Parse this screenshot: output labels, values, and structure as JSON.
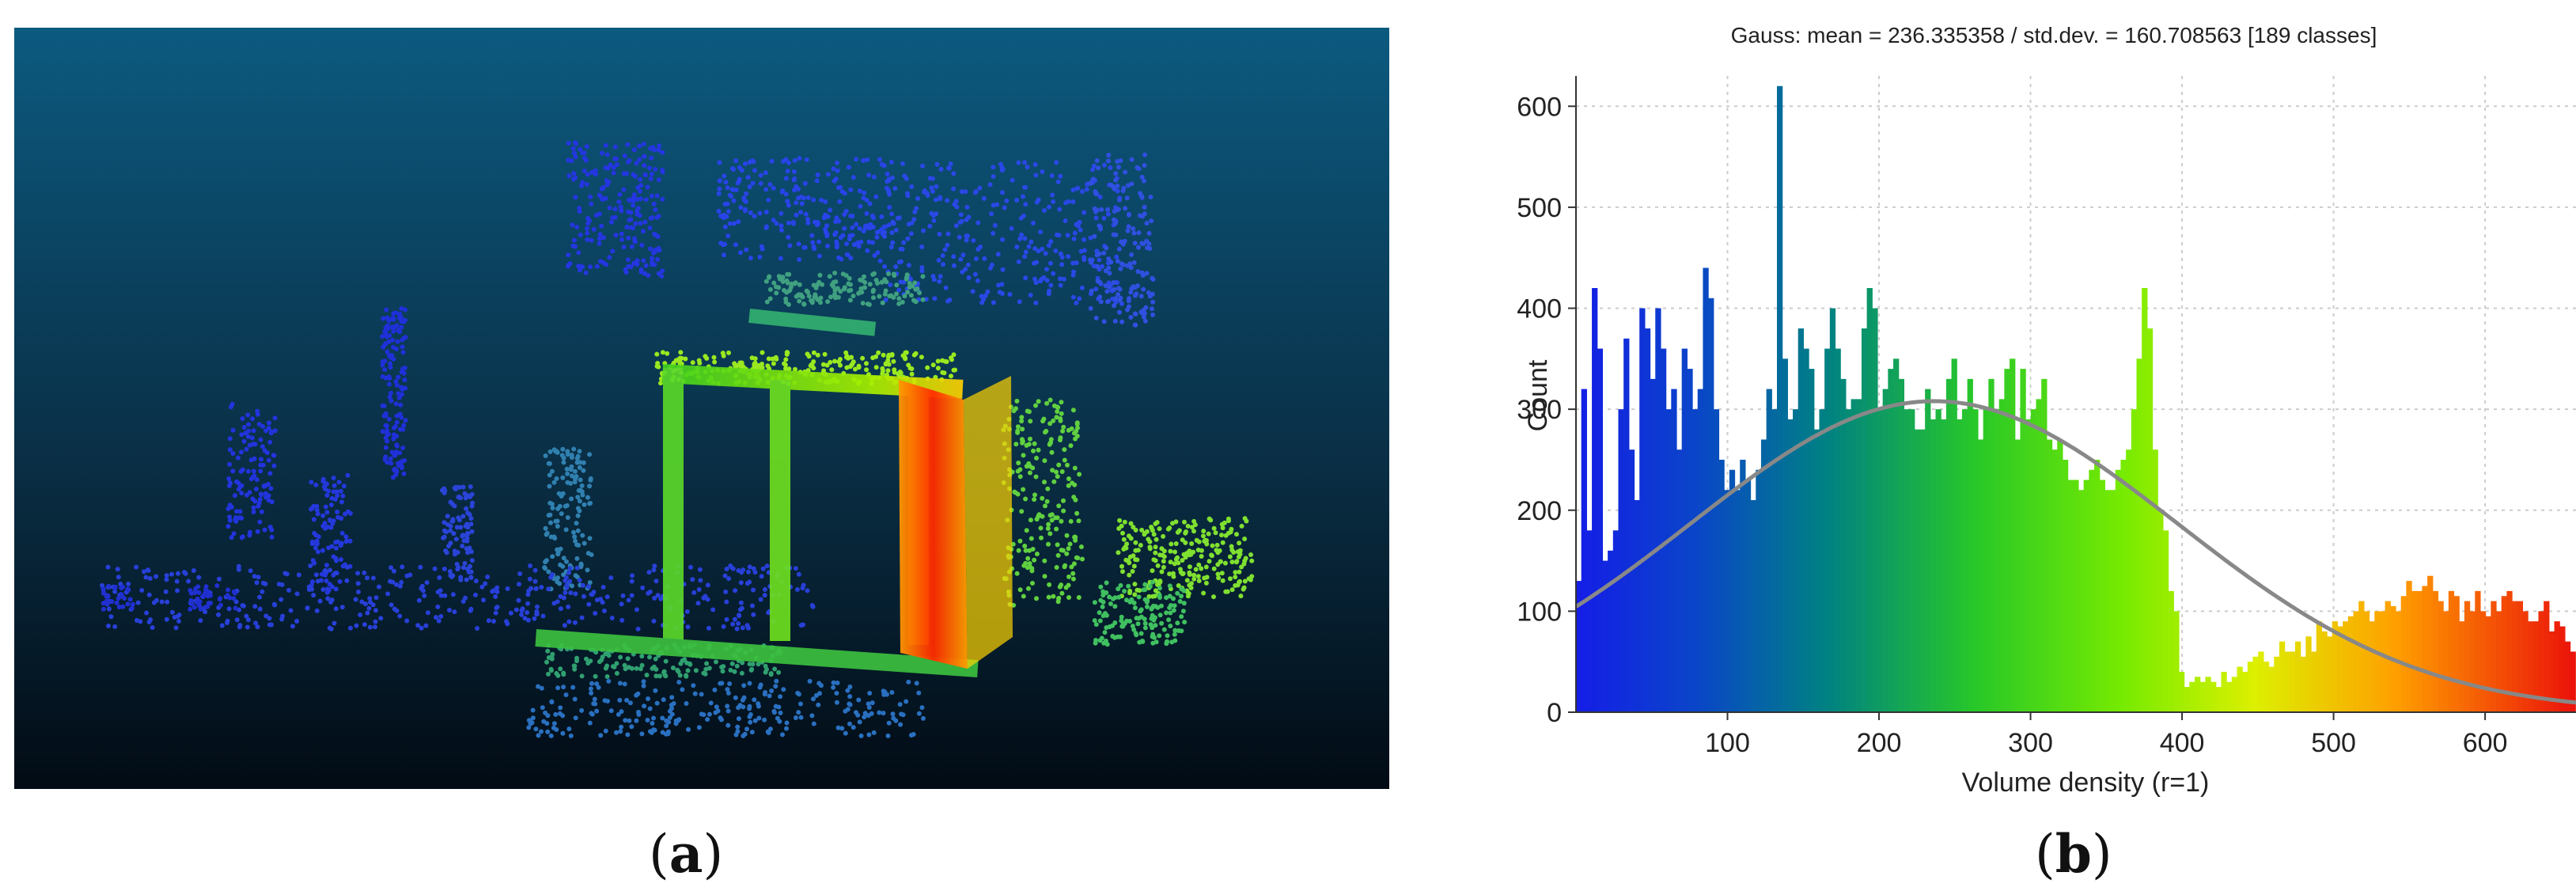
{
  "captions": {
    "a": "a",
    "b": "b"
  },
  "panel_a": {
    "description_icon": "point-cloud-image"
  },
  "chart_data": {
    "type": "bar",
    "title": "Gauss: mean = 236.335358 / std.dev. = 160.708563 [189 classes]",
    "xlabel": "Volume density (r=1)",
    "ylabel": "Count",
    "xlim": [
      0,
      660
    ],
    "ylim": [
      0,
      630
    ],
    "x_ticks": [
      100,
      200,
      300,
      400,
      500,
      600
    ],
    "y_ticks": [
      0,
      100,
      200,
      300,
      400,
      500,
      600
    ],
    "grid": true,
    "bin_width": 3.49,
    "gauss": {
      "mean": 236.335358,
      "std": 160.708563,
      "peak": 308
    },
    "series": [
      {
        "values": [
          130,
          320,
          180,
          420,
          360,
          150,
          160,
          180,
          300,
          370,
          260,
          210,
          400,
          380,
          330,
          400,
          360,
          300,
          320,
          260,
          360,
          340,
          300,
          320,
          440,
          410,
          300,
          250,
          220,
          240,
          220,
          250,
          230,
          210,
          240,
          270,
          320,
          300,
          620,
          350,
          290,
          300,
          380,
          360,
          340,
          280,
          300,
          360,
          400,
          360,
          330,
          300,
          310,
          310,
          380,
          420,
          400,
          300,
          320,
          340,
          350,
          330,
          300,
          300,
          280,
          280,
          320,
          290,
          300,
          290,
          330,
          350,
          290,
          300,
          330,
          300,
          270,
          300,
          330,
          300,
          310,
          340,
          350,
          270,
          340,
          290,
          300,
          310,
          330,
          270,
          260,
          270,
          250,
          230,
          230,
          220,
          230,
          240,
          250,
          230,
          220,
          220,
          240,
          250,
          260,
          300,
          350,
          420,
          380,
          260,
          200,
          180,
          120,
          100,
          40,
          25,
          30,
          35,
          30,
          35,
          30,
          25,
          40,
          30,
          35,
          45,
          40,
          50,
          55,
          60,
          50,
          45,
          55,
          70,
          60,
          60,
          70,
          55,
          75,
          60,
          90,
          80,
          75,
          90,
          85,
          90,
          95,
          100,
          110,
          100,
          90,
          100,
          100,
          110,
          105,
          100,
          115,
          130,
          120,
          120,
          125,
          135,
          120,
          110,
          100,
          120,
          115,
          90,
          110,
          100,
          120,
          100,
          95,
          110,
          100,
          115,
          120,
          110,
          110,
          100,
          90,
          90,
          100,
          110,
          80,
          90,
          85,
          70,
          60
        ]
      }
    ]
  }
}
